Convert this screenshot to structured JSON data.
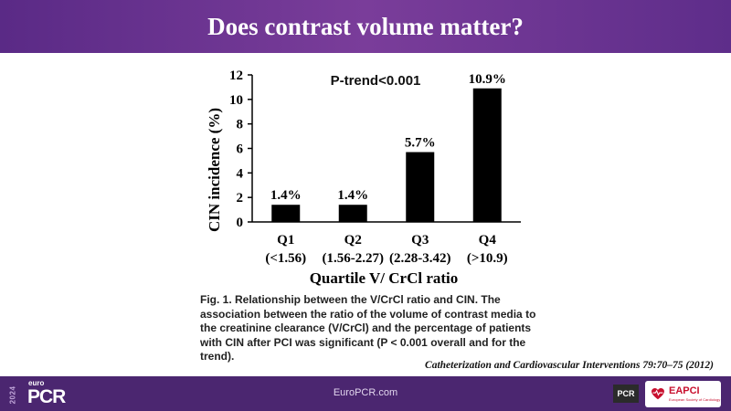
{
  "header": {
    "title": "Does contrast volume matter?"
  },
  "chart_data": {
    "type": "bar",
    "title": "",
    "annotation": "P-trend<0.001",
    "categories": [
      "Q1",
      "Q2",
      "Q3",
      "Q4"
    ],
    "category_ranges": [
      "(<1.56)",
      "(1.56-2.27)",
      "(2.28-3.42)",
      "(>10.9)"
    ],
    "values": [
      1.4,
      1.4,
      5.7,
      10.9
    ],
    "data_labels": [
      "1.4%",
      "1.4%",
      "5.7%",
      "10.9%"
    ],
    "xlabel": "Quartile V/ CrCl ratio",
    "ylabel": "CIN incidence (%)",
    "ylim": [
      0,
      12
    ],
    "yticks": [
      0,
      2,
      4,
      6,
      8,
      10,
      12
    ],
    "grid": false,
    "bar_color": "#000000"
  },
  "caption": {
    "text": "Fig. 1.  Relationship between the V/CrCl ratio and CIN. The association between the ratio of the volume of contrast media to the creatinine clearance (V/CrCl) and the percentage of patients with CIN after PCI was significant (P < 0.001 overall and for the trend)."
  },
  "citation": {
    "text": "Catheterization and Cardiovascular Interventions 79:70–75 (2012)"
  },
  "footer": {
    "year": "2024",
    "brand_small": "euro",
    "brand_large": "PCR",
    "url": "EuroPCR.com",
    "pcr_badge": "PCR",
    "eapci_label": "EAPCI",
    "eapci_sub": "European Society of Cardiology"
  },
  "colors": {
    "header_purple": "#5a2a86",
    "footer_purple": "#4b2670",
    "eapci_red": "#c8102e"
  }
}
